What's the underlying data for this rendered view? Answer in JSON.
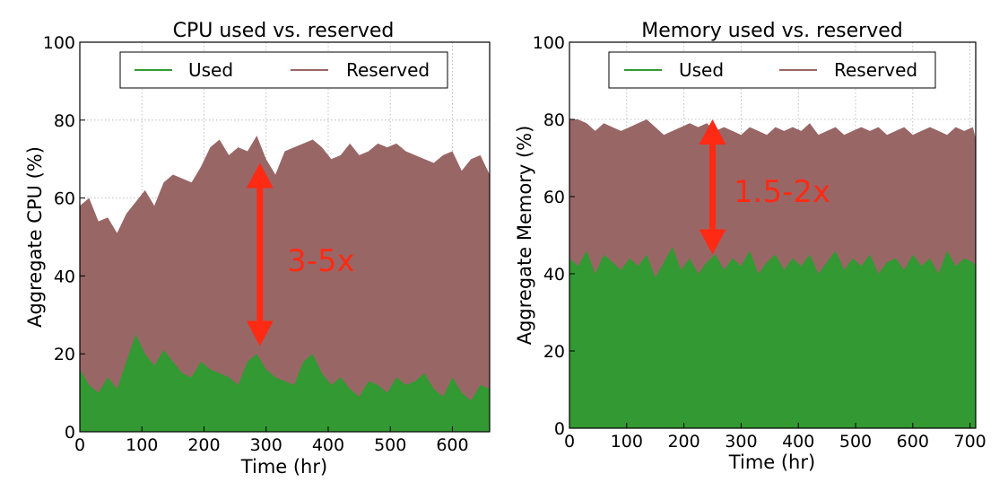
{
  "chart_data": [
    {
      "type": "area",
      "title": "CPU used vs. reserved",
      "xlabel": "Time (hr)",
      "ylabel": "Aggregate CPU (%)",
      "xlim": [
        0,
        660
      ],
      "ylim": [
        0,
        100
      ],
      "xticks": [
        0,
        100,
        200,
        300,
        400,
        500,
        600
      ],
      "yticks": [
        0,
        20,
        40,
        60,
        80,
        100
      ],
      "grid": true,
      "legend": "top",
      "x": [
        0,
        15,
        30,
        45,
        60,
        75,
        90,
        105,
        120,
        135,
        150,
        165,
        180,
        195,
        210,
        225,
        240,
        255,
        270,
        285,
        300,
        315,
        330,
        345,
        360,
        375,
        390,
        405,
        420,
        435,
        450,
        465,
        480,
        495,
        510,
        525,
        540,
        555,
        570,
        585,
        600,
        615,
        630,
        645,
        660
      ],
      "series": [
        {
          "name": "Used",
          "color": "#339933",
          "values": [
            16,
            12,
            10,
            14,
            11,
            18,
            25,
            20,
            17,
            21,
            18,
            15,
            14,
            18,
            16,
            15,
            14,
            12,
            18,
            20,
            16,
            14,
            13,
            12,
            18,
            20,
            15,
            12,
            14,
            11,
            9,
            13,
            12,
            10,
            14,
            12,
            13,
            15,
            11,
            9,
            14,
            10,
            8,
            12,
            11
          ]
        },
        {
          "name": "Reserved",
          "color": "#996666",
          "values": [
            58,
            60,
            54,
            55,
            51,
            56,
            59,
            62,
            58,
            64,
            66,
            65,
            64,
            68,
            73,
            75,
            71,
            73,
            72,
            76,
            70,
            66,
            72,
            73,
            74,
            75,
            73,
            70,
            71,
            74,
            71,
            72,
            74,
            73,
            74,
            72,
            71,
            70,
            69,
            71,
            72,
            67,
            70,
            71,
            66
          ]
        }
      ],
      "annotation": {
        "text": "3-5x",
        "x": 290,
        "y_top": 69,
        "y_bottom": 22,
        "color": "#ff2a14"
      }
    },
    {
      "type": "area",
      "title": "Memory used vs. reserved",
      "xlabel": "Time (hr)",
      "ylabel": "Aggregate Memory (%)",
      "xlim": [
        0,
        710
      ],
      "ylim": [
        0,
        100
      ],
      "xticks": [
        0,
        100,
        200,
        300,
        400,
        500,
        600,
        700
      ],
      "yticks": [
        0,
        20,
        40,
        60,
        80,
        100
      ],
      "grid": true,
      "legend": "top",
      "x": [
        0,
        15,
        30,
        45,
        60,
        75,
        90,
        105,
        120,
        135,
        150,
        165,
        180,
        195,
        210,
        225,
        240,
        255,
        270,
        285,
        300,
        315,
        330,
        345,
        360,
        375,
        390,
        405,
        420,
        435,
        450,
        465,
        480,
        495,
        510,
        525,
        540,
        555,
        570,
        585,
        600,
        615,
        630,
        645,
        660,
        675,
        690,
        705,
        710
      ],
      "series": [
        {
          "name": "Used",
          "color": "#339933",
          "values": [
            44,
            42,
            46,
            40,
            45,
            43,
            41,
            44,
            42,
            45,
            39,
            43,
            47,
            41,
            44,
            40,
            43,
            45,
            41,
            44,
            42,
            46,
            40,
            43,
            45,
            41,
            44,
            42,
            45,
            40,
            43,
            46,
            41,
            44,
            42,
            45,
            40,
            43,
            44,
            41,
            45,
            42,
            44,
            40,
            46,
            42,
            44,
            43,
            42
          ]
        },
        {
          "name": "Reserved",
          "color": "#996666",
          "values": [
            80,
            80,
            79,
            77,
            79,
            78,
            77,
            78,
            79,
            80,
            78,
            76,
            77,
            78,
            79,
            78,
            79,
            77,
            78,
            77,
            76,
            78,
            77,
            76,
            78,
            77,
            78,
            77,
            79,
            76,
            77,
            78,
            76,
            77,
            78,
            77,
            78,
            76,
            77,
            78,
            76,
            77,
            78,
            77,
            76,
            78,
            77,
            78,
            75
          ]
        }
      ],
      "annotation": {
        "text": "1.5-2x",
        "x": 250,
        "y_top": 80,
        "y_bottom": 45,
        "color": "#ff2a14"
      }
    }
  ]
}
